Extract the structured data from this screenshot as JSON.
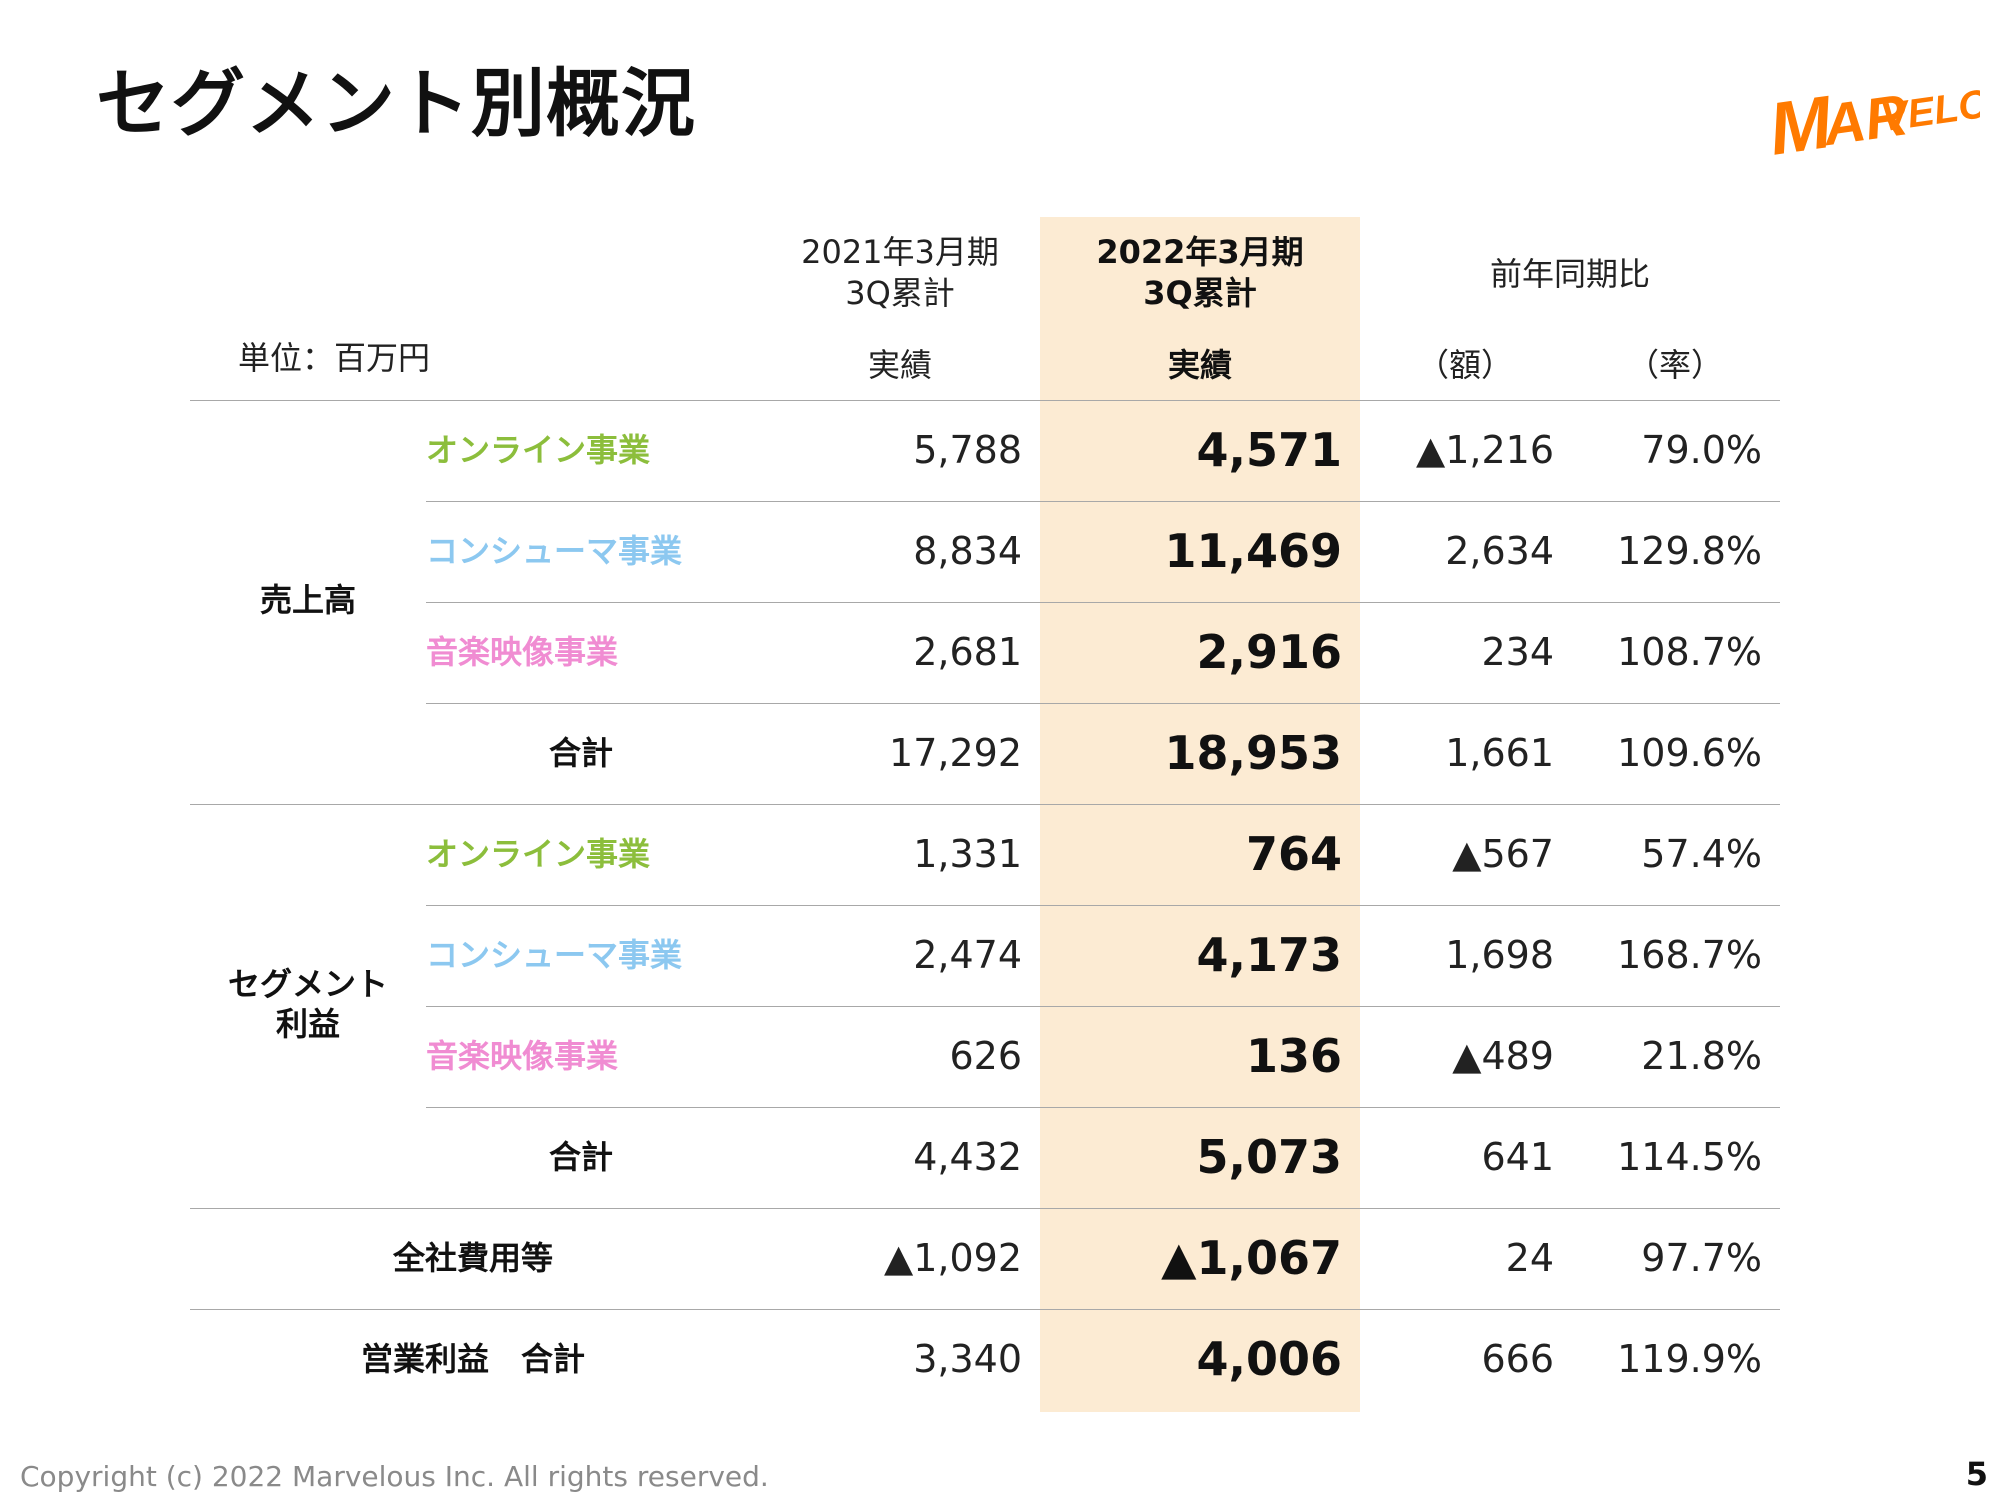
{
  "slide": {
    "title": "セグメント別概況",
    "logo_text": "MARVELOUS!",
    "footer": "Copyright (c) 2022 Marvelous Inc. All rights reserved.",
    "page_number": "5"
  },
  "colors": {
    "online": "#8cbe3c",
    "consumer": "#8cc8f0",
    "music": "#f08cd2",
    "highlight": "#fcebd3",
    "logo": "#ff7a00"
  },
  "table": {
    "unit_label": "単位：百万円",
    "header": {
      "prev_period_line1": "2021年3月期",
      "prev_period_line2": "3Q累計",
      "prev_actual": "実績",
      "curr_period_line1": "2022年3月期",
      "curr_period_line2": "3Q累計",
      "curr_actual": "実績",
      "yoy": "前年同期比",
      "yoy_amount": "（額）",
      "yoy_rate": "（率）"
    },
    "groups": {
      "sales": "売上高",
      "segment_profit_line1": "セグメント",
      "segment_profit_line2": "利益"
    },
    "rows": [
      {
        "label": "オンライン事業",
        "prev": "5,788",
        "curr": "4,571",
        "diff": "▲1,216",
        "rate": "79.0%"
      },
      {
        "label": "コンシューマ事業",
        "prev": "8,834",
        "curr": "11,469",
        "diff": "2,634",
        "rate": "129.8%"
      },
      {
        "label": "音楽映像事業",
        "prev": "2,681",
        "curr": "2,916",
        "diff": "234",
        "rate": "108.7%"
      },
      {
        "label": "合計",
        "prev": "17,292",
        "curr": "18,953",
        "diff": "1,661",
        "rate": "109.6%"
      },
      {
        "label": "オンライン事業",
        "prev": "1,331",
        "curr": "764",
        "diff": "▲567",
        "rate": "57.4%"
      },
      {
        "label": "コンシューマ事業",
        "prev": "2,474",
        "curr": "4,173",
        "diff": "1,698",
        "rate": "168.7%"
      },
      {
        "label": "音楽映像事業",
        "prev": "626",
        "curr": "136",
        "diff": "▲489",
        "rate": "21.8%"
      },
      {
        "label": "合計",
        "prev": "4,432",
        "curr": "5,073",
        "diff": "641",
        "rate": "114.5%"
      },
      {
        "label": "全社費用等",
        "prev": "▲1,092",
        "curr": "▲1,067",
        "diff": "24",
        "rate": "97.7%"
      },
      {
        "label": "営業利益　合計",
        "prev": "3,340",
        "curr": "4,006",
        "diff": "666",
        "rate": "119.9%"
      }
    ]
  }
}
